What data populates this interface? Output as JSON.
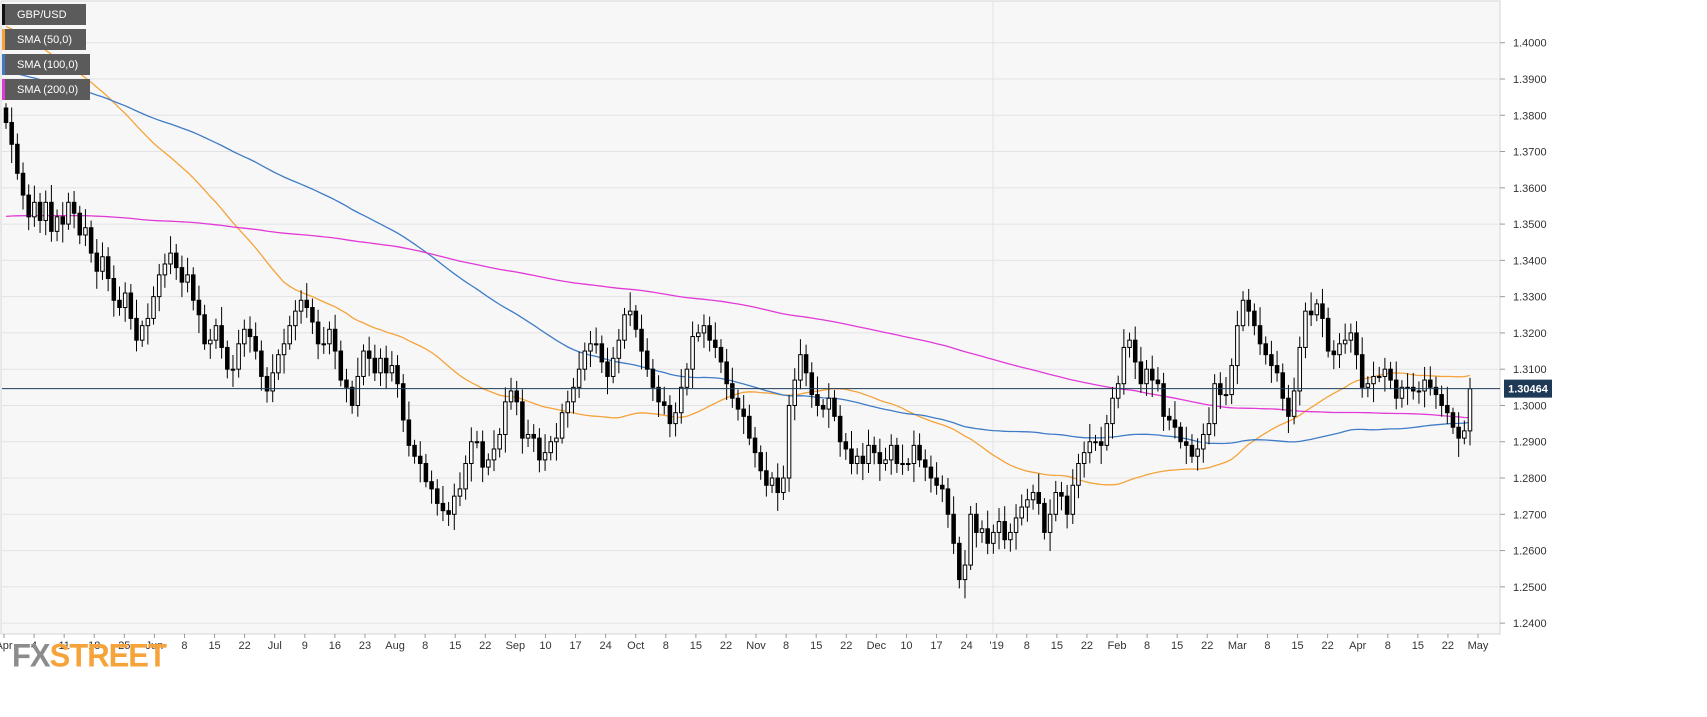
{
  "legend": [
    {
      "label": "GBP/USD",
      "color": "#111111"
    },
    {
      "label": "SMA (50,0)",
      "color": "#f5a33a"
    },
    {
      "label": "SMA (100,0)",
      "color": "#3f7cc5"
    },
    {
      "label": "SMA (200,0)",
      "color": "#e23ad6"
    }
  ],
  "brand": {
    "part1": "FX",
    "part2": "STREET"
  },
  "price_tag": "1.30464",
  "chart_data": {
    "type": "candlestick",
    "symbol": "GBP/USD",
    "timeframe": "daily",
    "ylim": [
      1.237,
      1.4115
    ],
    "y_ticks": [
      "1.2400",
      "1.2500",
      "1.2600",
      "1.2700",
      "1.2800",
      "1.2900",
      "1.3000",
      "1.3100",
      "1.3200",
      "1.3300",
      "1.3400",
      "1.3500",
      "1.3600",
      "1.3700",
      "1.3800",
      "1.3900",
      "1.4000"
    ],
    "x_ticks": [
      "Apr",
      "4",
      "11",
      "18",
      "25",
      "Jun",
      "8",
      "15",
      "22",
      "Jul",
      "9",
      "16",
      "23",
      "Aug",
      "8",
      "15",
      "22",
      "Sep",
      "10",
      "17",
      "24",
      "Oct",
      "8",
      "15",
      "22",
      "Nov",
      "8",
      "15",
      "22",
      "Dec",
      "10",
      "17",
      "24",
      "'19",
      "8",
      "15",
      "22",
      "Feb",
      "8",
      "15",
      "22",
      "Mar",
      "8",
      "15",
      "22",
      "Apr",
      "8",
      "15",
      "22",
      "May"
    ],
    "current_price": 1.30464,
    "grid": true,
    "colors": {
      "up": "#ffffff",
      "down": "#000000",
      "sma50": "#f5a33a",
      "sma100": "#3f7cc5",
      "sma200": "#e23ad6",
      "tag_bg": "#1f3a56"
    },
    "close": [
      1.378,
      1.372,
      1.364,
      1.358,
      1.352,
      1.356,
      1.351,
      1.356,
      1.348,
      1.352,
      1.35,
      1.356,
      1.353,
      1.347,
      1.349,
      1.342,
      1.337,
      1.341,
      1.335,
      1.329,
      1.327,
      1.331,
      1.324,
      1.318,
      1.322,
      1.324,
      1.33,
      1.336,
      1.339,
      1.342,
      1.338,
      1.334,
      1.336,
      1.329,
      1.325,
      1.317,
      1.318,
      1.322,
      1.316,
      1.31,
      1.31,
      1.317,
      1.321,
      1.319,
      1.315,
      1.308,
      1.304,
      1.309,
      1.314,
      1.317,
      1.322,
      1.326,
      1.329,
      1.327,
      1.323,
      1.317,
      1.317,
      1.321,
      1.315,
      1.307,
      1.305,
      1.3,
      1.308,
      1.315,
      1.313,
      1.309,
      1.313,
      1.309,
      1.311,
      1.306,
      1.296,
      1.289,
      1.286,
      1.284,
      1.279,
      1.277,
      1.273,
      1.271,
      1.27,
      1.275,
      1.277,
      1.284,
      1.29,
      1.29,
      1.283,
      1.285,
      1.288,
      1.292,
      1.301,
      1.304,
      1.301,
      1.291,
      1.292,
      1.291,
      1.285,
      1.287,
      1.29,
      1.291,
      1.298,
      1.301,
      1.305,
      1.31,
      1.315,
      1.317,
      1.317,
      1.312,
      1.308,
      1.313,
      1.318,
      1.325,
      1.326,
      1.321,
      1.315,
      1.31,
      1.305,
      1.301,
      1.3,
      1.295,
      1.298,
      1.305,
      1.31,
      1.319,
      1.32,
      1.322,
      1.318,
      1.316,
      1.312,
      1.306,
      1.302,
      1.299,
      1.297,
      1.291,
      1.287,
      1.282,
      1.278,
      1.28,
      1.276,
      1.28,
      1.3,
      1.307,
      1.314,
      1.309,
      1.303,
      1.3,
      1.299,
      1.302,
      1.297,
      1.29,
      1.288,
      1.284,
      1.286,
      1.284,
      1.289,
      1.287,
      1.284,
      1.285,
      1.289,
      1.284,
      1.284,
      1.284,
      1.289,
      1.285,
      1.283,
      1.28,
      1.278,
      1.277,
      1.27,
      1.262,
      1.252,
      1.256,
      1.27,
      1.265,
      1.266,
      1.262,
      1.265,
      1.268,
      1.263,
      1.265,
      1.269,
      1.272,
      1.274,
      1.276,
      1.273,
      1.265,
      1.27,
      1.276,
      1.275,
      1.27,
      1.278,
      1.284,
      1.287,
      1.29,
      1.29,
      1.289,
      1.295,
      1.302,
      1.306,
      1.316,
      1.318,
      1.312,
      1.306,
      1.31,
      1.307,
      1.306,
      1.297,
      1.296,
      1.294,
      1.29,
      1.289,
      1.286,
      1.288,
      1.292,
      1.295,
      1.306,
      1.303,
      1.303,
      1.311,
      1.322,
      1.329,
      1.326,
      1.322,
      1.317,
      1.314,
      1.311,
      1.309,
      1.302,
      1.297,
      1.304,
      1.316,
      1.326,
      1.325,
      1.328,
      1.324,
      1.315,
      1.314,
      1.317,
      1.318,
      1.32,
      1.314,
      1.305,
      1.306,
      1.308,
      1.308,
      1.31,
      1.307,
      1.302,
      1.305,
      1.305,
      1.304,
      1.304,
      1.307,
      1.305,
      1.303,
      1.3,
      1.298,
      1.294,
      1.291,
      1.293,
      1.3046
    ]
  }
}
